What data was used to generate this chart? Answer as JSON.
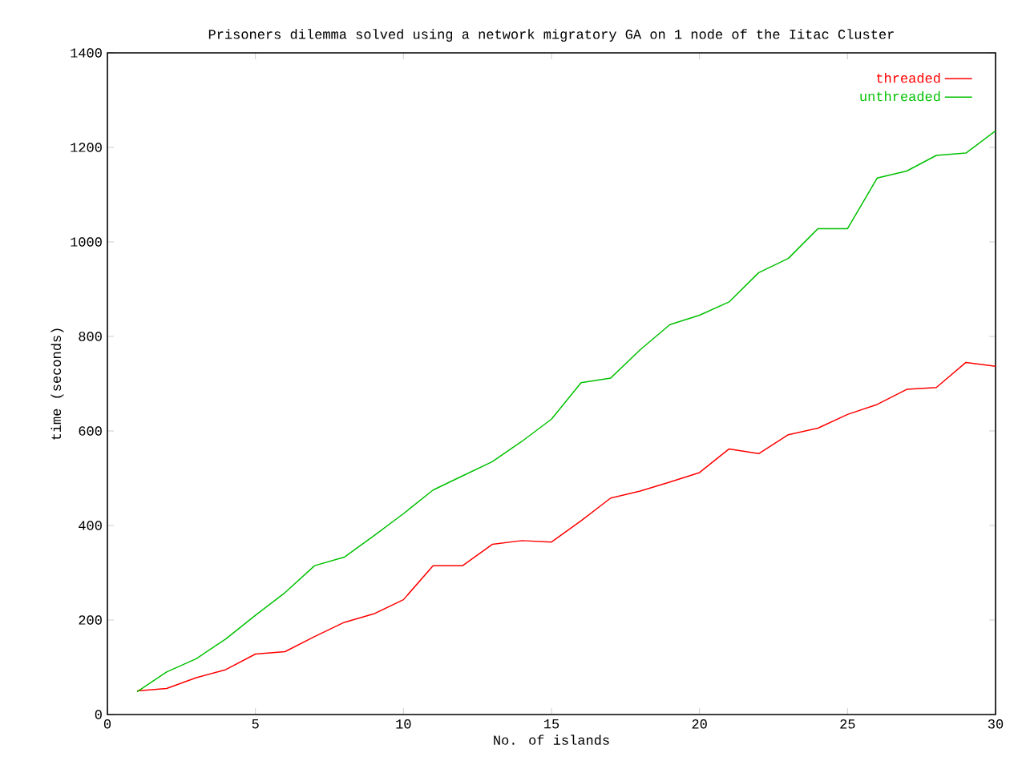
{
  "chart_data": {
    "type": "line",
    "title": "Prisoners dilemma solved using a network migratory GA on 1 node of the Iitac Cluster",
    "xlabel": "No. of islands",
    "ylabel": "time (seconds)",
    "x": [
      1,
      2,
      3,
      4,
      5,
      6,
      7,
      8,
      9,
      10,
      11,
      12,
      13,
      14,
      15,
      16,
      17,
      18,
      19,
      20,
      21,
      22,
      23,
      24,
      25,
      26,
      27,
      28,
      29,
      30
    ],
    "series": [
      {
        "name": "threaded",
        "color": "#ff0000",
        "values": [
          50,
          55,
          78,
          95,
          128,
          133,
          165,
          195,
          213,
          243,
          315,
          315,
          360,
          368,
          365,
          410,
          458,
          473,
          492,
          512,
          562,
          552,
          592,
          606,
          635,
          656,
          688,
          692,
          745,
          737
        ]
      },
      {
        "name": "unthreaded",
        "color": "#00c000",
        "values": [
          48,
          90,
          118,
          160,
          210,
          258,
          315,
          333,
          378,
          425,
          475,
          505,
          535,
          578,
          625,
          702,
          712,
          772,
          825,
          845,
          873,
          935,
          965,
          1028,
          1028,
          1135,
          1150,
          1183,
          1188,
          1235
        ]
      }
    ],
    "xlim": [
      0,
      30
    ],
    "ylim": [
      0,
      1400
    ],
    "xticks": [
      0,
      5,
      10,
      15,
      20,
      25,
      30
    ],
    "yticks": [
      0,
      200,
      400,
      600,
      800,
      1000,
      1200,
      1400
    ],
    "legend": "top right"
  }
}
